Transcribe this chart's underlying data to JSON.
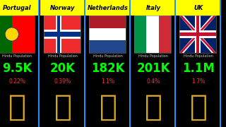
{
  "countries": [
    "Portugal",
    "Norway",
    "Netherlands",
    "Italy",
    "UK"
  ],
  "populations": [
    "9.5K",
    "20K",
    "182K",
    "201K",
    "1.1M"
  ],
  "percentages": [
    "0.22%",
    "0.39%",
    "1.1%",
    "0.4%",
    "1.7%"
  ],
  "bg_color": "#000000",
  "card_bg": "#000000",
  "label_color": "#00FF00",
  "pct_color": "#FF3333",
  "header_bg": "#FFFF00",
  "header_text_color": "#000000",
  "divider_color": "#1E90FF",
  "label_text": "Hindu Population",
  "label_text_color": "#CCCCCC",
  "om_color": "#DAA520",
  "first_col_cut": true
}
